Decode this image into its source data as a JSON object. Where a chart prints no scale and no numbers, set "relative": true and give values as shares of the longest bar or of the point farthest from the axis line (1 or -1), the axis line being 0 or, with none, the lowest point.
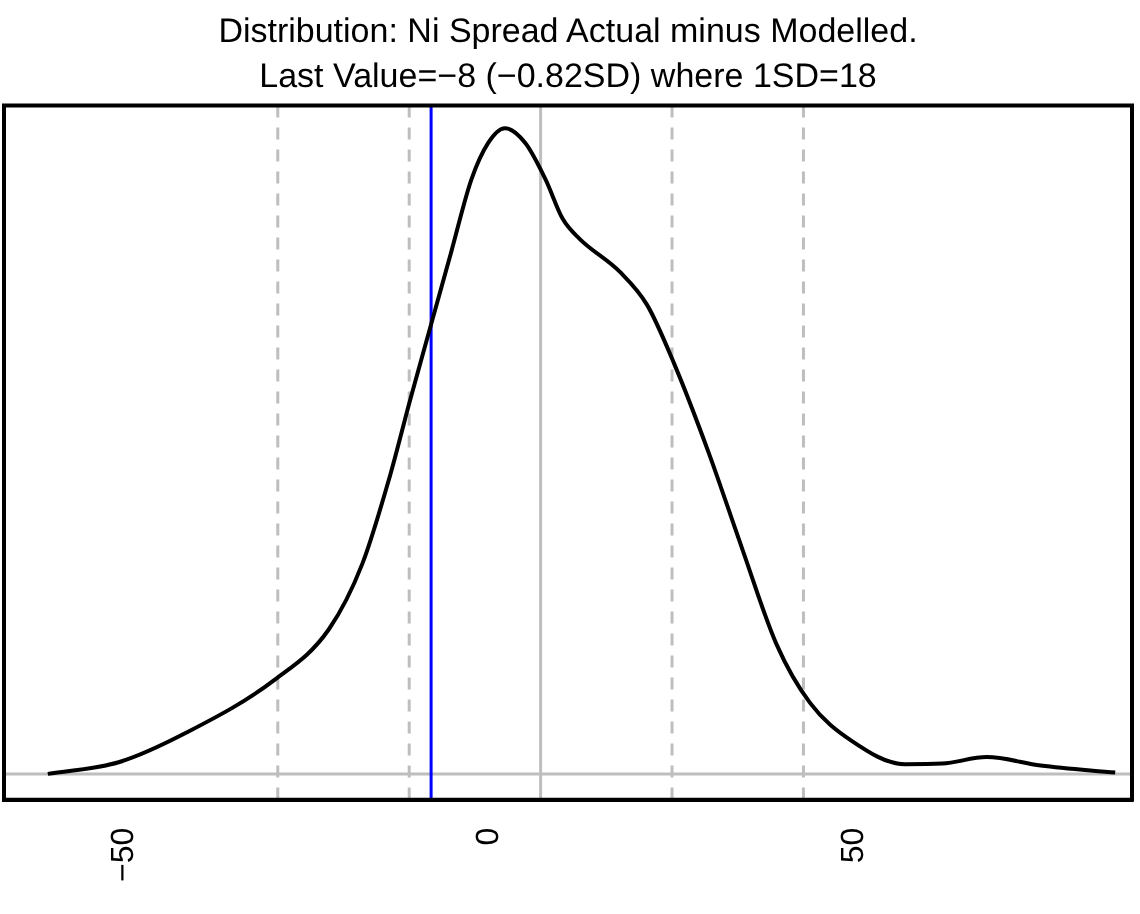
{
  "chart_data": {
    "type": "line",
    "title": "Distribution: Ni Spread Actual minus Modelled.",
    "subtitle": "Last Value=−8 (−0.82SD) where 1SD=18",
    "relative": true,
    "x": [
      -60.5,
      -50.8,
      -41.5,
      -29.4,
      -22,
      -17.4,
      -13.6,
      -10.9,
      -8.1,
      -5.3,
      -2.5,
      -0.2,
      2.1,
      4.9,
      7.7,
      10,
      12.3,
      17.9,
      21.6,
      25.3,
      30,
      34.6,
      39.3,
      43.9,
      49.5,
      56.9,
      62,
      68.1,
      75.5,
      85.7
    ],
    "series": [
      {
        "color": "#000000",
        "values": [
          0,
          0.018,
          0.064,
          0.146,
          0.224,
          0.326,
          0.463,
          0.578,
          0.692,
          0.806,
          0.92,
          0.977,
          1.0,
          0.977,
          0.92,
          0.86,
          0.829,
          0.777,
          0.726,
          0.635,
          0.498,
          0.349,
          0.201,
          0.11,
          0.052,
          0.015,
          0.016,
          0.026,
          0.013,
          0.002
        ]
      }
    ],
    "xlim": [
      -66.5,
      88
    ],
    "xticks": [
      -50,
      0,
      50
    ],
    "marker": "none",
    "line_style": "solid",
    "legend": false,
    "tick_labels": "x",
    "ref_lines": [
      {
        "axis": "y",
        "value": 0,
        "color": "#bebebe",
        "line_style": "solid"
      },
      {
        "axis": "x",
        "value": -29,
        "color": "#bebebe",
        "line_style": "dashed"
      },
      {
        "axis": "x",
        "value": -11,
        "color": "#bebebe",
        "line_style": "dashed"
      },
      {
        "axis": "x",
        "value": 7,
        "color": "#bebebe",
        "line_style": "solid"
      },
      {
        "axis": "x",
        "value": 25,
        "color": "#bebebe",
        "line_style": "dashed"
      },
      {
        "axis": "x",
        "value": 43,
        "color": "#bebebe",
        "line_style": "dashed"
      },
      {
        "axis": "x",
        "value": -8,
        "color": "#0000ff",
        "line_style": "solid"
      }
    ]
  }
}
